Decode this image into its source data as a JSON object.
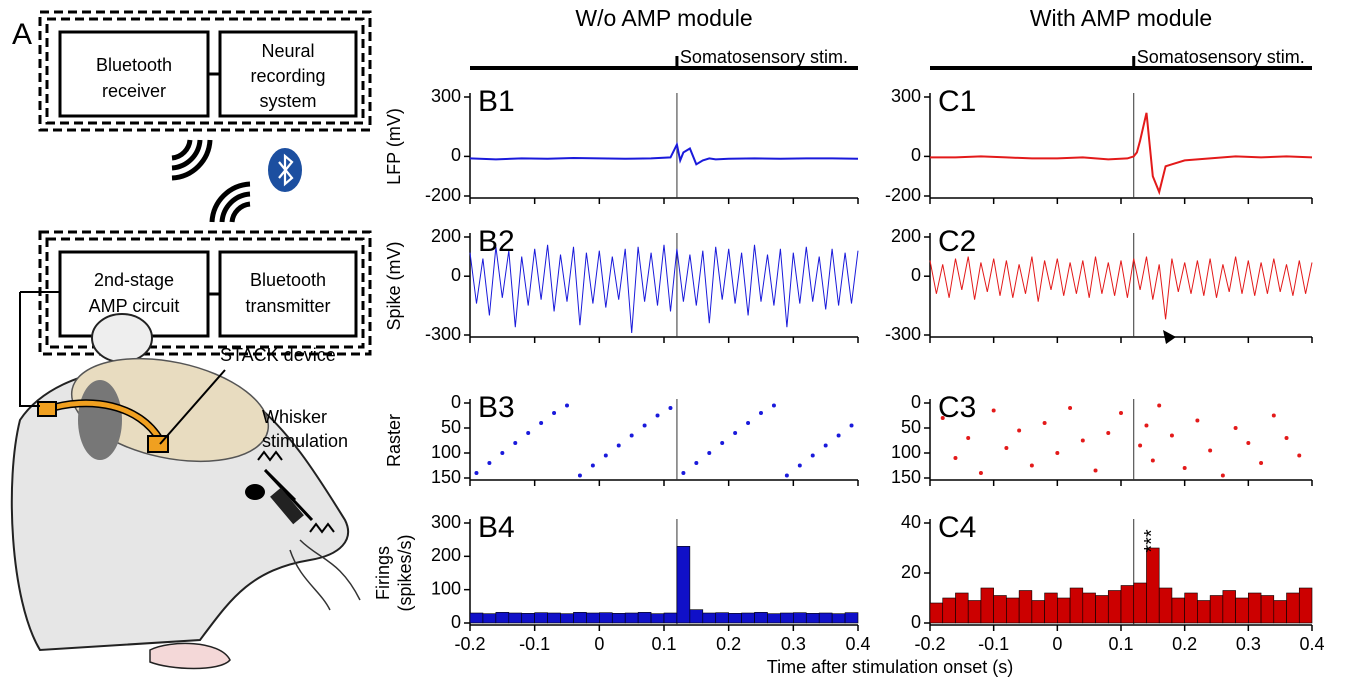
{
  "diagram": {
    "panel_label": "A",
    "receiver_box": [
      "Bluetooth",
      "receiver"
    ],
    "recording_box": [
      "Neural",
      "recording",
      "system"
    ],
    "amp_box": [
      "2nd-stage",
      "AMP circuit"
    ],
    "transmitter_box": [
      "Bluetooth",
      "transmitter"
    ],
    "device_label": "STACK device",
    "whisker_label": [
      "Whisker",
      "stimulation"
    ]
  },
  "columns": [
    {
      "title": "W/o AMP module",
      "stim_label": "Somatosensory stim."
    },
    {
      "title": "With AMP module",
      "stim_label": "Somatosensory stim."
    }
  ],
  "xlabel": "Time after stimulation onset (s)",
  "chart_data": [
    {
      "type": "line",
      "panel_label": "B1",
      "ylabel": "LFP (mV)",
      "color": "#1a1adb",
      "stim": 0.12,
      "xlim": [
        -0.2,
        0.4
      ],
      "xticks": [
        -0.2,
        -0.1,
        0,
        0.1,
        0.2,
        0.3,
        0.4
      ],
      "ylim": [
        -200,
        300
      ],
      "yticks": [
        -200,
        0,
        300
      ],
      "x": [
        -0.2,
        -0.16,
        -0.12,
        -0.08,
        -0.04,
        0,
        0.04,
        0.08,
        0.11,
        0.12,
        0.125,
        0.13,
        0.14,
        0.15,
        0.16,
        0.17,
        0.18,
        0.2,
        0.24,
        0.28,
        0.32,
        0.36,
        0.4
      ],
      "values": [
        -10,
        -15,
        -10,
        -12,
        -8,
        -10,
        -12,
        -10,
        -5,
        60,
        -20,
        20,
        40,
        -40,
        -20,
        -10,
        -15,
        -12,
        -10,
        -12,
        -10,
        -10,
        -12
      ]
    },
    {
      "type": "spike",
      "panel_label": "B2",
      "ylabel": "Spike (mV)",
      "color": "#1a1adb",
      "stim": 0.12,
      "xlim": [
        -0.2,
        0.4
      ],
      "xticks": [
        -0.2,
        -0.1,
        0,
        0.1,
        0.2,
        0.3,
        0.4
      ],
      "ylim": [
        -300,
        200
      ],
      "yticks": [
        -300,
        0,
        200
      ],
      "x": [
        -0.2,
        -0.19,
        -0.18,
        -0.17,
        -0.16,
        -0.15,
        -0.14,
        -0.13,
        -0.12,
        -0.11,
        -0.1,
        -0.09,
        -0.08,
        -0.07,
        -0.06,
        -0.05,
        -0.04,
        -0.03,
        -0.02,
        -0.01,
        0,
        0.01,
        0.02,
        0.03,
        0.04,
        0.05,
        0.06,
        0.07,
        0.08,
        0.09,
        0.1,
        0.11,
        0.12,
        0.13,
        0.14,
        0.15,
        0.16,
        0.17,
        0.18,
        0.19,
        0.2,
        0.21,
        0.22,
        0.23,
        0.24,
        0.25,
        0.26,
        0.27,
        0.28,
        0.29,
        0.3,
        0.31,
        0.32,
        0.33,
        0.34,
        0.35,
        0.36,
        0.37,
        0.38,
        0.39,
        0.4
      ],
      "values": [
        120,
        -140,
        90,
        -200,
        150,
        -110,
        130,
        -260,
        100,
        -150,
        140,
        -120,
        160,
        -180,
        110,
        -130,
        150,
        -250,
        120,
        -140,
        130,
        -160,
        100,
        -120,
        140,
        -290,
        150,
        -130,
        120,
        -150,
        160,
        -180,
        140,
        -130,
        110,
        -150,
        130,
        -240,
        150,
        -120,
        140,
        -140,
        120,
        -200,
        160,
        -130,
        110,
        -150,
        140,
        -260,
        120,
        -140,
        150,
        -130,
        100,
        -170,
        140,
        -150,
        120,
        -140,
        130
      ]
    },
    {
      "type": "scatter",
      "panel_label": "B3",
      "ylabel": "Raster",
      "color": "#1a1adb",
      "stim": 0.12,
      "xlim": [
        -0.2,
        0.4
      ],
      "xticks": [
        -0.2,
        -0.1,
        0,
        0.1,
        0.2,
        0.3,
        0.4
      ],
      "ylim": [
        150,
        0
      ],
      "yticks": [
        0,
        50,
        100,
        150
      ],
      "x": [
        -0.19,
        -0.17,
        -0.15,
        -0.13,
        -0.11,
        -0.09,
        -0.07,
        -0.05,
        -0.03,
        -0.01,
        0.01,
        0.03,
        0.05,
        0.07,
        0.09,
        0.11,
        0.13,
        0.15,
        0.17,
        0.19,
        0.21,
        0.23,
        0.25,
        0.27,
        0.29,
        0.31,
        0.33,
        0.35,
        0.37,
        0.39
      ],
      "values": [
        140,
        120,
        100,
        80,
        60,
        40,
        20,
        5,
        145,
        125,
        105,
        85,
        65,
        45,
        25,
        10,
        140,
        120,
        100,
        80,
        60,
        40,
        20,
        5,
        145,
        125,
        105,
        85,
        65,
        45
      ]
    },
    {
      "type": "histogram",
      "panel_label": "B4",
      "ylabel": [
        "Firings",
        "(spikes/s)"
      ],
      "color": "#1010c8",
      "stim": 0.12,
      "xlim": [
        -0.2,
        0.4
      ],
      "xticks": [
        -0.2,
        -0.1,
        0,
        0.1,
        0.2,
        0.3,
        0.4
      ],
      "ylim": [
        0,
        300
      ],
      "yticks": [
        0,
        100,
        200,
        300
      ],
      "bins": [
        -0.2,
        -0.18,
        -0.16,
        -0.14,
        -0.12,
        -0.1,
        -0.08,
        -0.06,
        -0.04,
        -0.02,
        0,
        0.02,
        0.04,
        0.06,
        0.08,
        0.1,
        0.12,
        0.14,
        0.16,
        0.18,
        0.2,
        0.22,
        0.24,
        0.26,
        0.28,
        0.3,
        0.32,
        0.34,
        0.36,
        0.38,
        0.4
      ],
      "values": [
        30,
        28,
        32,
        30,
        29,
        31,
        30,
        28,
        32,
        30,
        31,
        29,
        30,
        32,
        28,
        30,
        230,
        40,
        30,
        31,
        29,
        30,
        32,
        28,
        30,
        31,
        29,
        30,
        28,
        31
      ]
    },
    {
      "type": "line",
      "panel_label": "C1",
      "color": "#e31a1a",
      "stim": 0.12,
      "xlim": [
        -0.2,
        0.4
      ],
      "xticks": [
        -0.2,
        -0.1,
        0,
        0.1,
        0.2,
        0.3,
        0.4
      ],
      "ylim": [
        -200,
        300
      ],
      "yticks": [
        -200,
        0,
        300
      ],
      "x": [
        -0.2,
        -0.16,
        -0.12,
        -0.08,
        -0.04,
        0,
        0.04,
        0.08,
        0.11,
        0.12,
        0.125,
        0.13,
        0.14,
        0.15,
        0.16,
        0.17,
        0.18,
        0.2,
        0.24,
        0.28,
        0.32,
        0.36,
        0.4
      ],
      "values": [
        -5,
        -5,
        0,
        -5,
        -10,
        -10,
        -5,
        -15,
        -10,
        0,
        20,
        80,
        220,
        -100,
        -180,
        -50,
        -40,
        -20,
        -10,
        0,
        -5,
        0,
        -5
      ]
    },
    {
      "type": "spike",
      "panel_label": "C2",
      "color": "#e31a1a",
      "stim": 0.12,
      "xlim": [
        -0.2,
        0.4
      ],
      "xticks": [
        -0.2,
        -0.1,
        0,
        0.1,
        0.2,
        0.3,
        0.4
      ],
      "ylim": [
        -300,
        200
      ],
      "yticks": [
        -300,
        0,
        200
      ],
      "x": [
        -0.2,
        -0.19,
        -0.18,
        -0.17,
        -0.16,
        -0.15,
        -0.14,
        -0.13,
        -0.12,
        -0.11,
        -0.1,
        -0.09,
        -0.08,
        -0.07,
        -0.06,
        -0.05,
        -0.04,
        -0.03,
        -0.02,
        -0.01,
        0,
        0.01,
        0.02,
        0.03,
        0.04,
        0.05,
        0.06,
        0.07,
        0.08,
        0.09,
        0.1,
        0.11,
        0.12,
        0.13,
        0.14,
        0.15,
        0.16,
        0.17,
        0.18,
        0.19,
        0.2,
        0.21,
        0.22,
        0.23,
        0.24,
        0.25,
        0.26,
        0.27,
        0.28,
        0.29,
        0.3,
        0.31,
        0.32,
        0.33,
        0.34,
        0.35,
        0.36,
        0.37,
        0.38,
        0.39,
        0.4
      ],
      "values": [
        80,
        -90,
        60,
        -110,
        90,
        -70,
        100,
        -120,
        70,
        -80,
        90,
        -100,
        80,
        -110,
        60,
        -90,
        100,
        -130,
        80,
        -70,
        90,
        -100,
        70,
        -90,
        80,
        -110,
        100,
        -90,
        70,
        -100,
        80,
        -110,
        90,
        -70,
        100,
        -120,
        60,
        -220,
        90,
        -80,
        70,
        -90,
        80,
        -100,
        90,
        -110,
        60,
        -80,
        100,
        -90,
        80,
        -100,
        70,
        -90,
        90,
        -80,
        60,
        -100,
        80,
        -90,
        70
      ]
    },
    {
      "type": "scatter",
      "panel_label": "C3",
      "color": "#e31a1a",
      "stim": 0.12,
      "xlim": [
        -0.2,
        0.4
      ],
      "xticks": [
        -0.2,
        -0.1,
        0,
        0.1,
        0.2,
        0.3,
        0.4
      ],
      "ylim": [
        150,
        0
      ],
      "yticks": [
        0,
        50,
        100,
        150
      ],
      "x": [
        -0.18,
        -0.16,
        -0.14,
        -0.12,
        -0.1,
        -0.08,
        -0.06,
        -0.04,
        -0.02,
        0,
        0.02,
        0.04,
        0.06,
        0.08,
        0.1,
        0.13,
        0.14,
        0.15,
        0.16,
        0.18,
        0.2,
        0.22,
        0.24,
        0.26,
        0.28,
        0.3,
        0.32,
        0.34,
        0.36,
        0.38
      ],
      "values": [
        30,
        110,
        70,
        140,
        15,
        90,
        55,
        125,
        40,
        100,
        10,
        75,
        135,
        60,
        20,
        85,
        45,
        115,
        5,
        65,
        130,
        35,
        95,
        145,
        50,
        80,
        120,
        25,
        70,
        105
      ]
    },
    {
      "type": "histogram",
      "panel_label": "C4",
      "color": "#cc0000",
      "stim": 0.12,
      "annotation": {
        "text": "***",
        "x": 0.15
      },
      "xlim": [
        -0.2,
        0.4
      ],
      "xticks": [
        -0.2,
        -0.1,
        0,
        0.1,
        0.2,
        0.3,
        0.4
      ],
      "ylim": [
        0,
        40
      ],
      "yticks": [
        0,
        20,
        40
      ],
      "bins": [
        -0.2,
        -0.18,
        -0.16,
        -0.14,
        -0.12,
        -0.1,
        -0.08,
        -0.06,
        -0.04,
        -0.02,
        0,
        0.02,
        0.04,
        0.06,
        0.08,
        0.1,
        0.12,
        0.14,
        0.16,
        0.18,
        0.2,
        0.22,
        0.24,
        0.26,
        0.28,
        0.3,
        0.32,
        0.34,
        0.36,
        0.38,
        0.4
      ],
      "values": [
        8,
        10,
        12,
        9,
        14,
        11,
        10,
        13,
        9,
        12,
        10,
        14,
        12,
        11,
        13,
        15,
        16,
        30,
        14,
        10,
        12,
        9,
        11,
        13,
        10,
        12,
        11,
        9,
        12,
        14
      ]
    }
  ]
}
